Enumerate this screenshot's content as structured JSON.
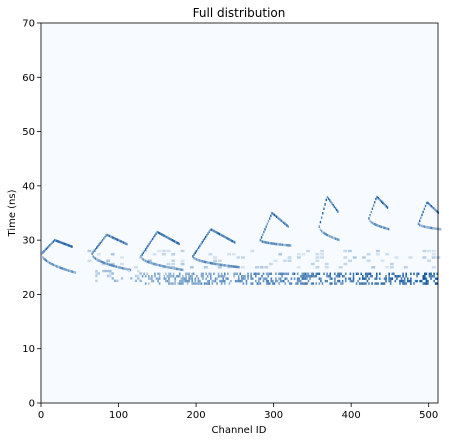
{
  "chart_data": {
    "type": "heatmap",
    "title": "Full distribution",
    "xlabel": "Channel ID",
    "ylabel": "Time (ns)",
    "xlim": [
      0,
      512
    ],
    "ylim": [
      0,
      70
    ],
    "x_ticks": [
      0,
      100,
      200,
      300,
      400,
      500
    ],
    "y_ticks": [
      0,
      10,
      20,
      30,
      40,
      50,
      60,
      70
    ],
    "grid": false,
    "colormap": {
      "low": "#f7fbff",
      "high": "#08519c"
    },
    "background_color": "#f7fbff",
    "features": {
      "chevrons": [
        {
          "x_start": 0,
          "x_end": 40,
          "tip_time": 27.5,
          "top_time": 30.0,
          "tail_time": 24.0
        },
        {
          "x_start": 65,
          "x_end": 110,
          "tip_time": 27.5,
          "top_time": 31.0,
          "tail_time": 24.5
        },
        {
          "x_start": 128,
          "x_end": 178,
          "tip_time": 27.0,
          "top_time": 31.5,
          "tail_time": 24.5
        },
        {
          "x_start": 195,
          "x_end": 250,
          "tip_time": 27.0,
          "top_time": 32.0,
          "tail_time": 25.0
        },
        {
          "x_start": 282,
          "x_end": 318,
          "tip_time": 30.0,
          "top_time": 35.0,
          "tail_time": 29.0
        },
        {
          "x_start": 358,
          "x_end": 382,
          "tip_time": 32.5,
          "top_time": 38.0,
          "tail_time": 30.0
        },
        {
          "x_start": 422,
          "x_end": 446,
          "tip_time": 34.0,
          "top_time": 38.0,
          "tail_time": 32.0
        },
        {
          "x_start": 486,
          "x_end": 512,
          "tip_time": 33.0,
          "top_time": 37.0,
          "tail_time": 32.0
        }
      ],
      "dense_band": {
        "x_start": 130,
        "x_end": 512,
        "time_low": 22.0,
        "time_high": 24.0
      },
      "faint_band": {
        "x_start": 60,
        "x_end": 512,
        "time_low": 25.0,
        "time_high": 28.5
      }
    }
  }
}
